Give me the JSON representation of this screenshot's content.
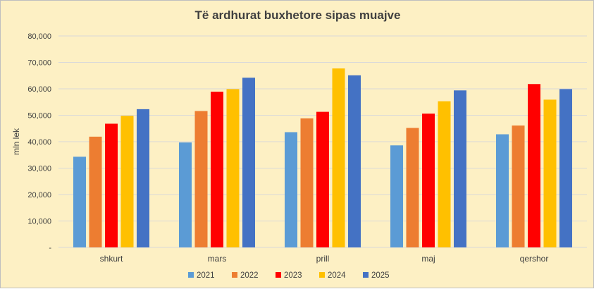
{
  "chart_data": {
    "type": "bar",
    "title": "Të ardhurat buxhetore sipas muajve",
    "ylabel": "mln lek",
    "xlabel": "",
    "ylim": [
      0,
      80000
    ],
    "yticks": [
      0,
      10000,
      20000,
      30000,
      40000,
      50000,
      60000,
      70000,
      80000
    ],
    "ytick_labels": [
      "-",
      "10,000",
      "20,000",
      "30,000",
      "40,000",
      "50,000",
      "60,000",
      "70,000",
      "80,000"
    ],
    "categories": [
      "shkurt",
      "mars",
      "prill",
      "maj",
      "qershor"
    ],
    "series": [
      {
        "name": "2021",
        "color": "#5b9bd5",
        "values": [
          34300,
          39700,
          43600,
          38600,
          42800
        ]
      },
      {
        "name": "2022",
        "color": "#ed7d31",
        "values": [
          41900,
          51600,
          48800,
          45200,
          46100
        ]
      },
      {
        "name": "2023",
        "color": "#ff0000",
        "values": [
          46800,
          58900,
          51300,
          50600,
          61800
        ]
      },
      {
        "name": "2024",
        "color": "#ffc000",
        "values": [
          49800,
          59900,
          67700,
          55300,
          55900
        ]
      },
      {
        "name": "2025",
        "color": "#4472c4",
        "values": [
          52300,
          64200,
          65100,
          59400,
          59900
        ]
      }
    ],
    "grid": true,
    "legend": "bottom"
  },
  "colors": {
    "background": "#fdf0c4",
    "gridline": "#d9d9d9",
    "text": "#404040"
  }
}
